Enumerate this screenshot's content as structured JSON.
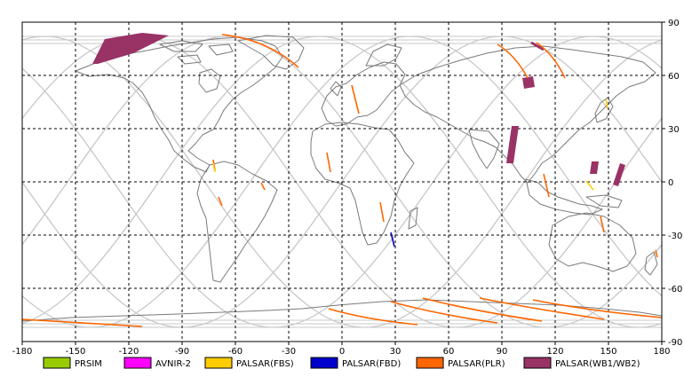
{
  "map": {
    "x_ticks": [
      "-180",
      "-150",
      "-120",
      "-90",
      "-60",
      "-30",
      "0",
      "30",
      "60",
      "90",
      "120",
      "150",
      "180"
    ],
    "y_ticks": [
      "90",
      "60",
      "30",
      "0",
      "-30",
      "-60",
      "-90"
    ],
    "x_range": [
      -180,
      180
    ],
    "y_range": [
      -90,
      90
    ],
    "grid": true,
    "colors": {
      "frame": "#000000",
      "coast": "#808080",
      "orbit": "#c0c0c0",
      "grid": "#000000"
    }
  },
  "legend": {
    "position": "bottom",
    "items": [
      {
        "label": "PRSIM",
        "color": "#99cc00"
      },
      {
        "label": "AVNIR-2",
        "color": "#ff00ff"
      },
      {
        "label": "PALSAR(FBS)",
        "color": "#ffcc00"
      },
      {
        "label": "PALSAR(FBD)",
        "color": "#0000cc"
      },
      {
        "label": "PALSAR(PLR)",
        "color": "#ff6600"
      },
      {
        "label": "PALSAR(WB1/WB2)",
        "color": "#993366"
      }
    ]
  }
}
